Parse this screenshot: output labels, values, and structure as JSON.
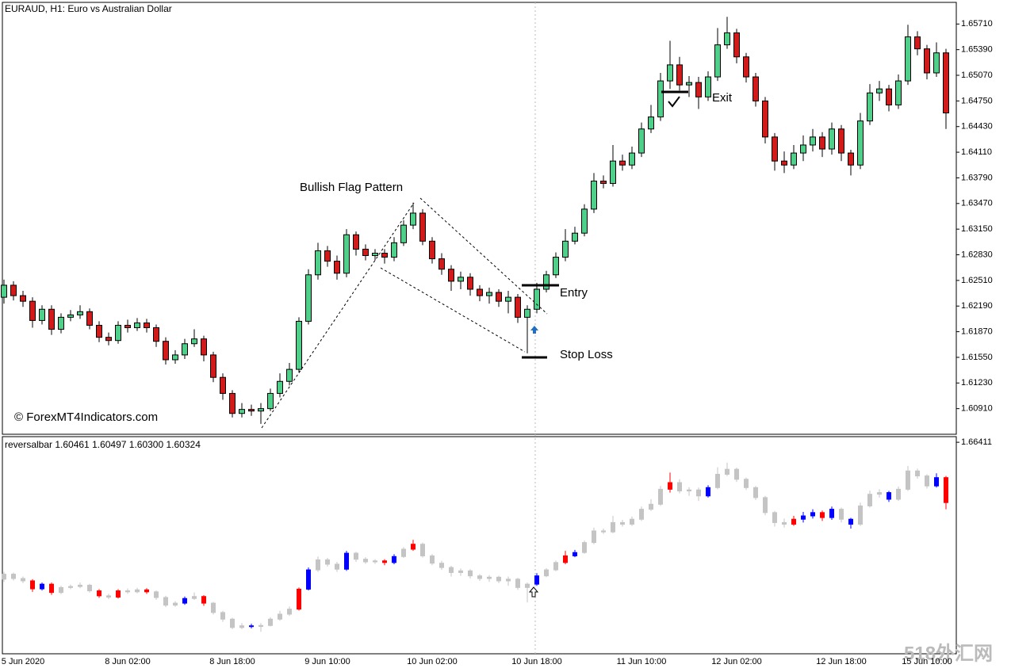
{
  "chart_data": [
    {
      "type": "candlestick",
      "title": "EURAUD, H1:  Euro vs Australian Dollar",
      "categories": [
        null,
        null,
        "5 Jun 2020",
        null,
        null,
        null,
        null,
        null,
        null,
        null,
        null,
        null,
        null,
        "8 Jun 02:00",
        null,
        null,
        null,
        null,
        null,
        null,
        null,
        null,
        null,
        null,
        "8 Jun 18:00",
        null,
        null,
        null,
        null,
        null,
        null,
        null,
        null,
        null,
        "9 Jun 10:00",
        null,
        null,
        null,
        null,
        null,
        null,
        null,
        null,
        null,
        null,
        "10 Jun 02:00",
        null,
        null,
        null,
        null,
        null,
        null,
        null,
        null,
        null,
        null,
        "10 Jun 18:00",
        null,
        null,
        null,
        null,
        null,
        null,
        null,
        null,
        null,
        null,
        "11 Jun 10:00",
        null,
        null,
        null,
        null,
        null,
        null,
        null,
        null,
        null,
        "12 Jun 02:00",
        null,
        null,
        null,
        null,
        null,
        null,
        null,
        null,
        null,
        null,
        "12 Jun 18:00",
        null,
        null,
        null,
        null,
        null,
        null,
        null,
        null,
        "15 Jun 10:00",
        null,
        null
      ],
      "open": [
        1.623,
        1.6245,
        1.6232,
        1.6225,
        1.6201,
        1.6215,
        1.619,
        1.6205,
        1.6208,
        1.6212,
        1.6195,
        1.618,
        1.6176,
        1.6195,
        1.6192,
        1.6198,
        1.6192,
        1.6175,
        1.6152,
        1.6158,
        1.6172,
        1.6178,
        1.6158,
        1.613,
        1.611,
        1.6085,
        1.609,
        1.6088,
        1.6091,
        1.611,
        1.6125,
        1.614,
        1.62,
        1.6258,
        1.6288,
        1.6275,
        1.626,
        1.6308,
        1.629,
        1.6282,
        1.6285,
        1.628,
        1.6298,
        1.632,
        1.6335,
        1.63,
        1.6278,
        1.6265,
        1.625,
        1.6255,
        1.624,
        1.6232,
        1.6236,
        1.6225,
        1.623,
        1.6205,
        1.6215,
        1.624,
        1.6258,
        1.628,
        1.63,
        1.631,
        1.634,
        1.6375,
        1.6372,
        1.64,
        1.6395,
        1.641,
        1.644,
        1.6455,
        1.65,
        1.652,
        1.6495,
        1.6498,
        1.648,
        1.6505,
        1.6545,
        1.656,
        1.653,
        1.6505,
        1.6475,
        1.643,
        1.64,
        1.6395,
        1.641,
        1.642,
        1.643,
        1.6415,
        1.644,
        1.641,
        1.6395,
        1.645,
        1.6485,
        1.649,
        1.647,
        1.65,
        1.6555,
        1.654,
        1.651,
        1.6535
      ],
      "high": [
        1.6252,
        1.625,
        1.6238,
        1.623,
        1.622,
        1.622,
        1.621,
        1.6214,
        1.622,
        1.6216,
        1.62,
        1.6186,
        1.62,
        1.6202,
        1.6204,
        1.6203,
        1.6196,
        1.618,
        1.6164,
        1.6178,
        1.619,
        1.6182,
        1.6162,
        1.6135,
        1.6114,
        1.6098,
        1.6096,
        1.6098,
        1.6116,
        1.6135,
        1.6148,
        1.6205,
        1.6265,
        1.6298,
        1.6294,
        1.6282,
        1.6315,
        1.6312,
        1.6296,
        1.629,
        1.629,
        1.6305,
        1.6326,
        1.6348,
        1.634,
        1.6305,
        1.6285,
        1.627,
        1.6262,
        1.626,
        1.6245,
        1.6242,
        1.624,
        1.6238,
        1.6234,
        1.622,
        1.6248,
        1.6263,
        1.6286,
        1.6315,
        1.6318,
        1.6346,
        1.6385,
        1.6382,
        1.642,
        1.6408,
        1.6418,
        1.6448,
        1.647,
        1.651,
        1.655,
        1.653,
        1.6506,
        1.6505,
        1.6512,
        1.6566,
        1.658,
        1.6565,
        1.6535,
        1.651,
        1.648,
        1.6435,
        1.6412,
        1.642,
        1.6432,
        1.644,
        1.6436,
        1.6448,
        1.6445,
        1.6414,
        1.646,
        1.6496,
        1.65,
        1.6495,
        1.6508,
        1.657,
        1.6562,
        1.6545,
        1.6548,
        1.654
      ],
      "low": [
        1.6222,
        1.6226,
        1.6218,
        1.6192,
        1.6196,
        1.6183,
        1.6185,
        1.62,
        1.6203,
        1.619,
        1.6174,
        1.617,
        1.6172,
        1.6186,
        1.6188,
        1.6186,
        1.6168,
        1.6146,
        1.6147,
        1.6153,
        1.6168,
        1.615,
        1.6124,
        1.6102,
        1.608,
        1.608,
        1.6082,
        1.6072,
        1.6088,
        1.6105,
        1.612,
        1.6136,
        1.6196,
        1.6252,
        1.6268,
        1.6252,
        1.6255,
        1.6282,
        1.6276,
        1.6276,
        1.6272,
        1.6275,
        1.6294,
        1.6315,
        1.6295,
        1.6272,
        1.6258,
        1.6238,
        1.624,
        1.6232,
        1.6225,
        1.6222,
        1.6218,
        1.621,
        1.6198,
        1.616,
        1.621,
        1.6236,
        1.6254,
        1.6275,
        1.6296,
        1.6306,
        1.6335,
        1.6366,
        1.6368,
        1.6388,
        1.639,
        1.6405,
        1.6435,
        1.645,
        1.649,
        1.6488,
        1.648,
        1.6465,
        1.6475,
        1.65,
        1.654,
        1.6522,
        1.6498,
        1.6468,
        1.6422,
        1.6388,
        1.6385,
        1.639,
        1.64,
        1.6412,
        1.6405,
        1.6408,
        1.64,
        1.6382,
        1.639,
        1.6445,
        1.6475,
        1.6462,
        1.6465,
        1.6495,
        1.6532,
        1.6502,
        1.6505,
        1.644
      ],
      "close": [
        1.6245,
        1.6232,
        1.6225,
        1.6201,
        1.6215,
        1.619,
        1.6205,
        1.6208,
        1.6212,
        1.6195,
        1.618,
        1.6176,
        1.6195,
        1.6192,
        1.6198,
        1.6192,
        1.6175,
        1.6152,
        1.6158,
        1.6172,
        1.6178,
        1.6158,
        1.613,
        1.611,
        1.6085,
        1.609,
        1.6088,
        1.6091,
        1.611,
        1.6125,
        1.614,
        1.62,
        1.6258,
        1.6288,
        1.6275,
        1.626,
        1.6308,
        1.629,
        1.6282,
        1.6285,
        1.628,
        1.6298,
        1.632,
        1.6335,
        1.63,
        1.6278,
        1.6265,
        1.625,
        1.6255,
        1.624,
        1.6232,
        1.6236,
        1.6225,
        1.623,
        1.6205,
        1.6215,
        1.624,
        1.6258,
        1.628,
        1.63,
        1.631,
        1.634,
        1.6375,
        1.6372,
        1.64,
        1.6395,
        1.641,
        1.644,
        1.6455,
        1.65,
        1.652,
        1.6495,
        1.6498,
        1.648,
        1.6505,
        1.6545,
        1.656,
        1.653,
        1.6505,
        1.6475,
        1.643,
        1.64,
        1.6395,
        1.641,
        1.642,
        1.643,
        1.6415,
        1.644,
        1.641,
        1.6395,
        1.645,
        1.6485,
        1.649,
        1.647,
        1.65,
        1.6555,
        1.654,
        1.651,
        1.6535,
        1.646
      ],
      "up_color": "#4fcf8a",
      "down_color": "#d11b1b",
      "ylim": [
        1.6059,
        1.6598
      ],
      "yticks": [
        {
          "value": 1.6571,
          "label": "1.65710"
        },
        {
          "value": 1.6539,
          "label": "1.65390"
        },
        {
          "value": 1.6507,
          "label": "1.65070"
        },
        {
          "value": 1.6475,
          "label": "1.64750"
        },
        {
          "value": 1.6443,
          "label": "1.64430"
        },
        {
          "value": 1.6411,
          "label": "1.64110"
        },
        {
          "value": 1.6379,
          "label": "1.63790"
        },
        {
          "value": 1.6347,
          "label": "1.63470"
        },
        {
          "value": 1.6315,
          "label": "1.63150"
        },
        {
          "value": 1.6283,
          "label": "1.62830"
        },
        {
          "value": 1.6251,
          "label": "1.62510"
        },
        {
          "value": 1.6219,
          "label": "1.62190"
        },
        {
          "value": 1.6187,
          "label": "1.61870"
        },
        {
          "value": 1.6155,
          "label": "1.61550"
        },
        {
          "value": 1.6123,
          "label": "1.61230"
        },
        {
          "value": 1.6091,
          "label": "1.60910"
        }
      ],
      "annotations": [
        "Bullish Flag Pattern",
        "Entry",
        "Stop Loss",
        "Exit",
        "© ForexMT4Indicators.com",
        "518外汇网"
      ]
    },
    {
      "type": "reversalbar",
      "title": "reversalbar 1.60461 1.60497 1.60300 1.60324",
      "ylim": [
        1.6006,
        1.6658
      ],
      "yticks": [
        {
          "value": 1.66411,
          "label": "1.66411"
        }
      ],
      "signal_colors": {
        "1": "#0000ff",
        "-1": "#ff0000",
        "0": "#c4c4c4"
      },
      "signals": [
        0,
        0,
        0,
        -1,
        1,
        -1,
        0,
        0,
        0,
        0,
        -1,
        0,
        -1,
        0,
        0,
        -1,
        0,
        0,
        0,
        1,
        0,
        -1,
        0,
        0,
        0,
        0,
        1,
        0,
        0,
        0,
        0,
        -1,
        1,
        0,
        0,
        0,
        1,
        0,
        0,
        0,
        -1,
        1,
        0,
        -1,
        0,
        0,
        0,
        0,
        0,
        0,
        0,
        0,
        0,
        0,
        0,
        0,
        1,
        0,
        0,
        -1,
        1,
        0,
        0,
        0,
        0,
        0,
        0,
        0,
        0,
        0,
        -1,
        0,
        0,
        0,
        1,
        0,
        0,
        0,
        0,
        0,
        0,
        0,
        0,
        -1,
        1,
        1,
        -1,
        1,
        0,
        1,
        0,
        0,
        0,
        1,
        0,
        0,
        0,
        0,
        1,
        -1
      ]
    }
  ]
}
